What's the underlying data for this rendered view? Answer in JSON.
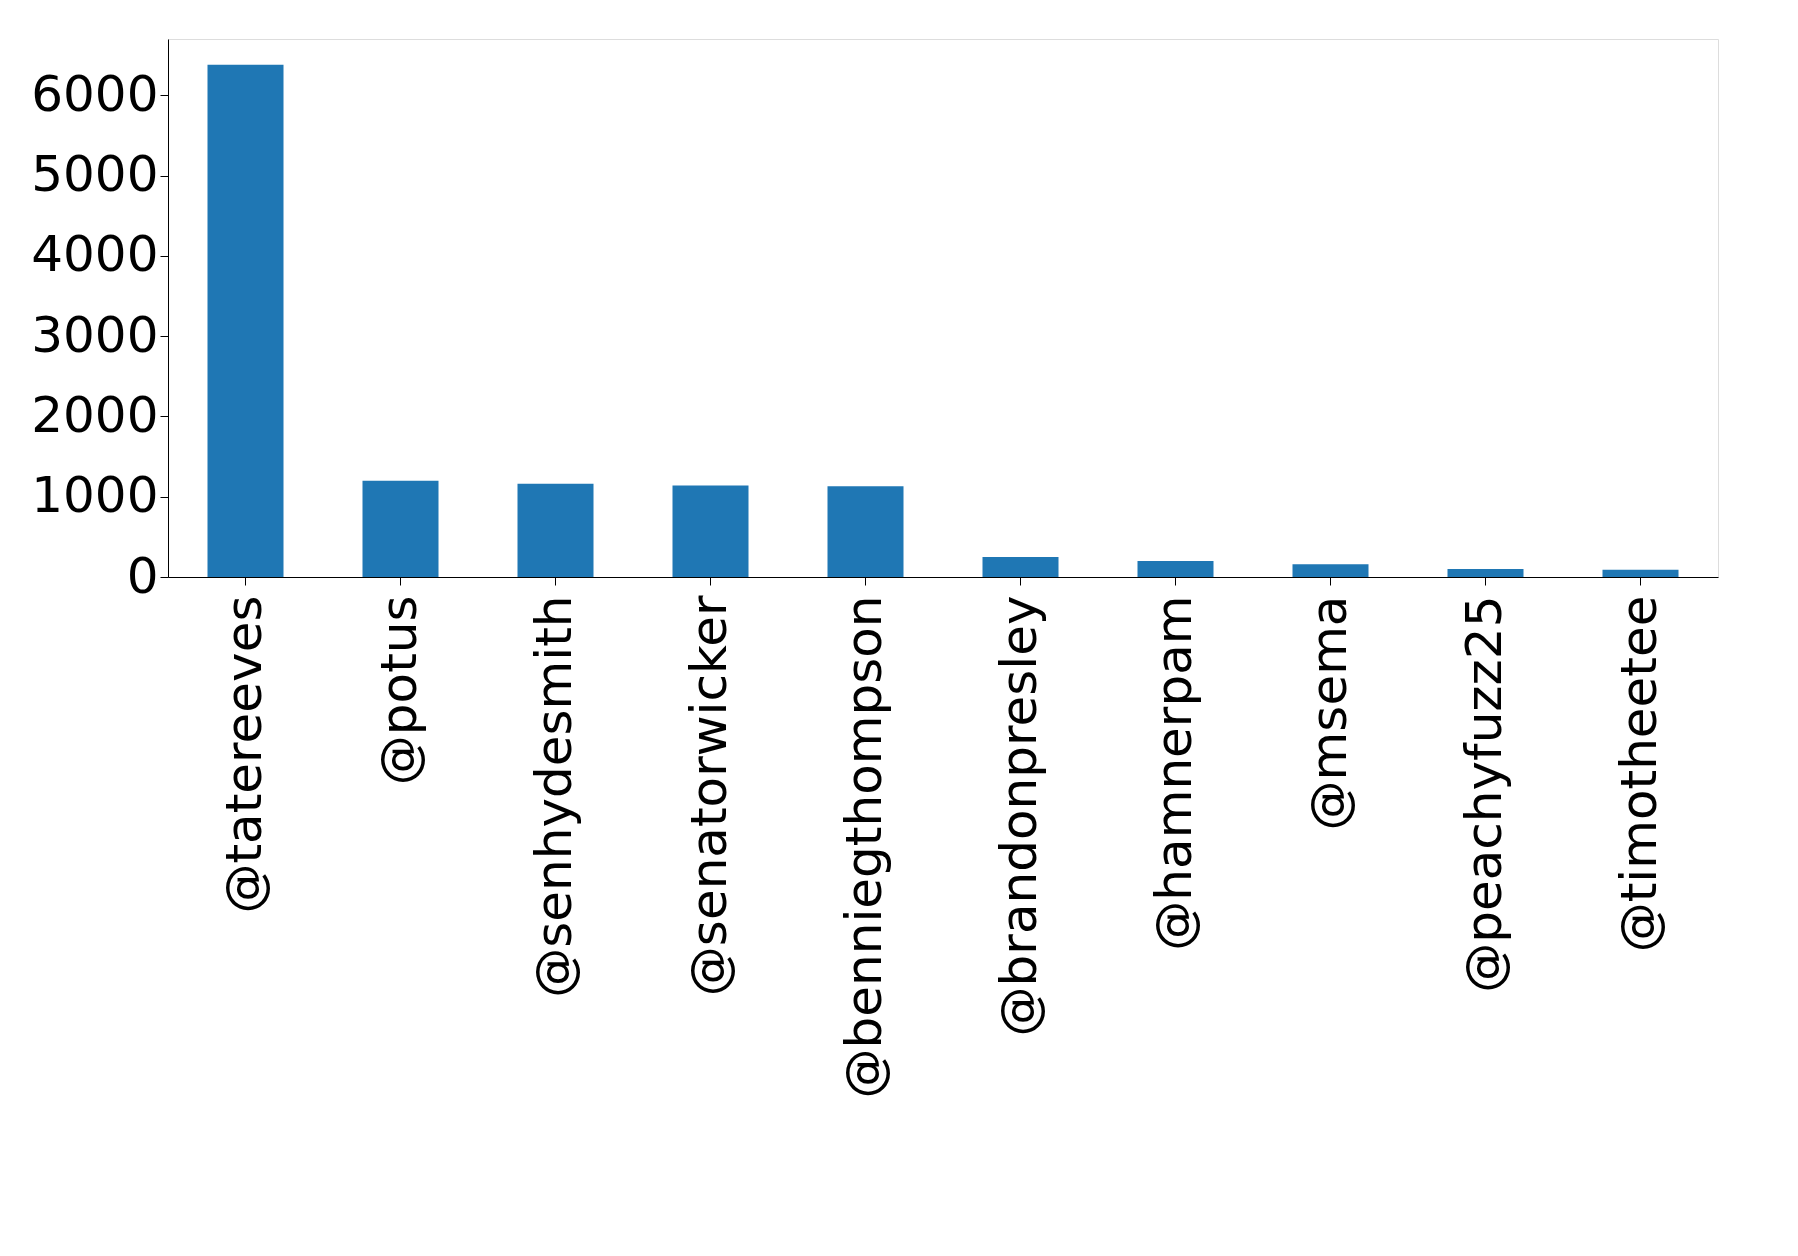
{
  "chart_data": {
    "type": "bar",
    "categories": [
      "@tatereeves",
      "@potus",
      "@senhydesmith",
      "@senatorwicker",
      "@benniegthompson",
      "@brandonpresley",
      "@hamnerpam",
      "@msema",
      "@peachyfuzz25",
      "@timotheetee"
    ],
    "values": [
      6380,
      1200,
      1160,
      1140,
      1130,
      250,
      200,
      160,
      100,
      90
    ],
    "color": "#1f77b4",
    "ylim": [
      0,
      6700
    ],
    "yticks": [
      0,
      1000,
      2000,
      3000,
      4000,
      5000,
      6000
    ],
    "grid": false
  }
}
